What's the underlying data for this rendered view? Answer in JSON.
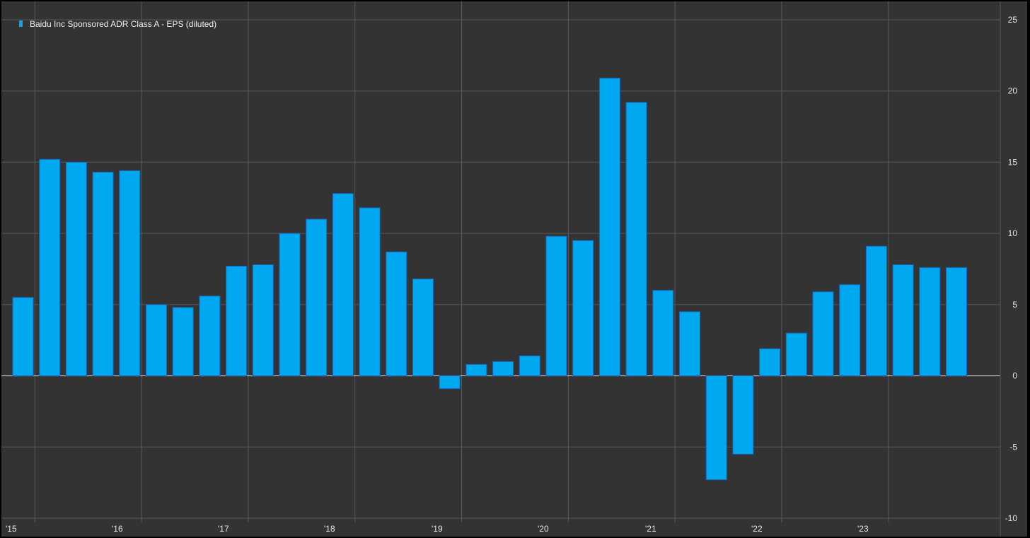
{
  "chart_data": {
    "type": "bar",
    "title": "",
    "xlabel": "",
    "ylabel": "",
    "series": [
      {
        "name": "Baidu Inc Sponsored ADR Class A - EPS (diluted)",
        "color": "#00a9ef",
        "values": [
          5.5,
          15.2,
          15.0,
          14.3,
          14.4,
          5.0,
          4.8,
          5.6,
          7.7,
          7.8,
          10.0,
          11.0,
          12.8,
          11.8,
          8.7,
          6.8,
          -0.9,
          0.8,
          1.0,
          1.4,
          9.8,
          9.5,
          20.9,
          19.2,
          6.0,
          4.5,
          -7.3,
          -5.5,
          1.9,
          3.0,
          5.9,
          6.4,
          9.1,
          7.8,
          7.6,
          7.6
        ]
      }
    ],
    "x_tick_labels": [
      "'15",
      "'16",
      "'17",
      "'18",
      "'19",
      "'20",
      "'21",
      "'22",
      "'23"
    ],
    "y_ticks": [
      25,
      20,
      15,
      10,
      5,
      0,
      -5,
      -10
    ],
    "ylim": [
      -10,
      25
    ],
    "grid": true,
    "legend_position": "top-left",
    "colors": {
      "background": "#333333",
      "grid": "#595959",
      "zero_line": "#cfcfcf",
      "bar": "#00a9ef",
      "bar_edge": "#1565c0",
      "text": "#e6e6e6"
    }
  }
}
